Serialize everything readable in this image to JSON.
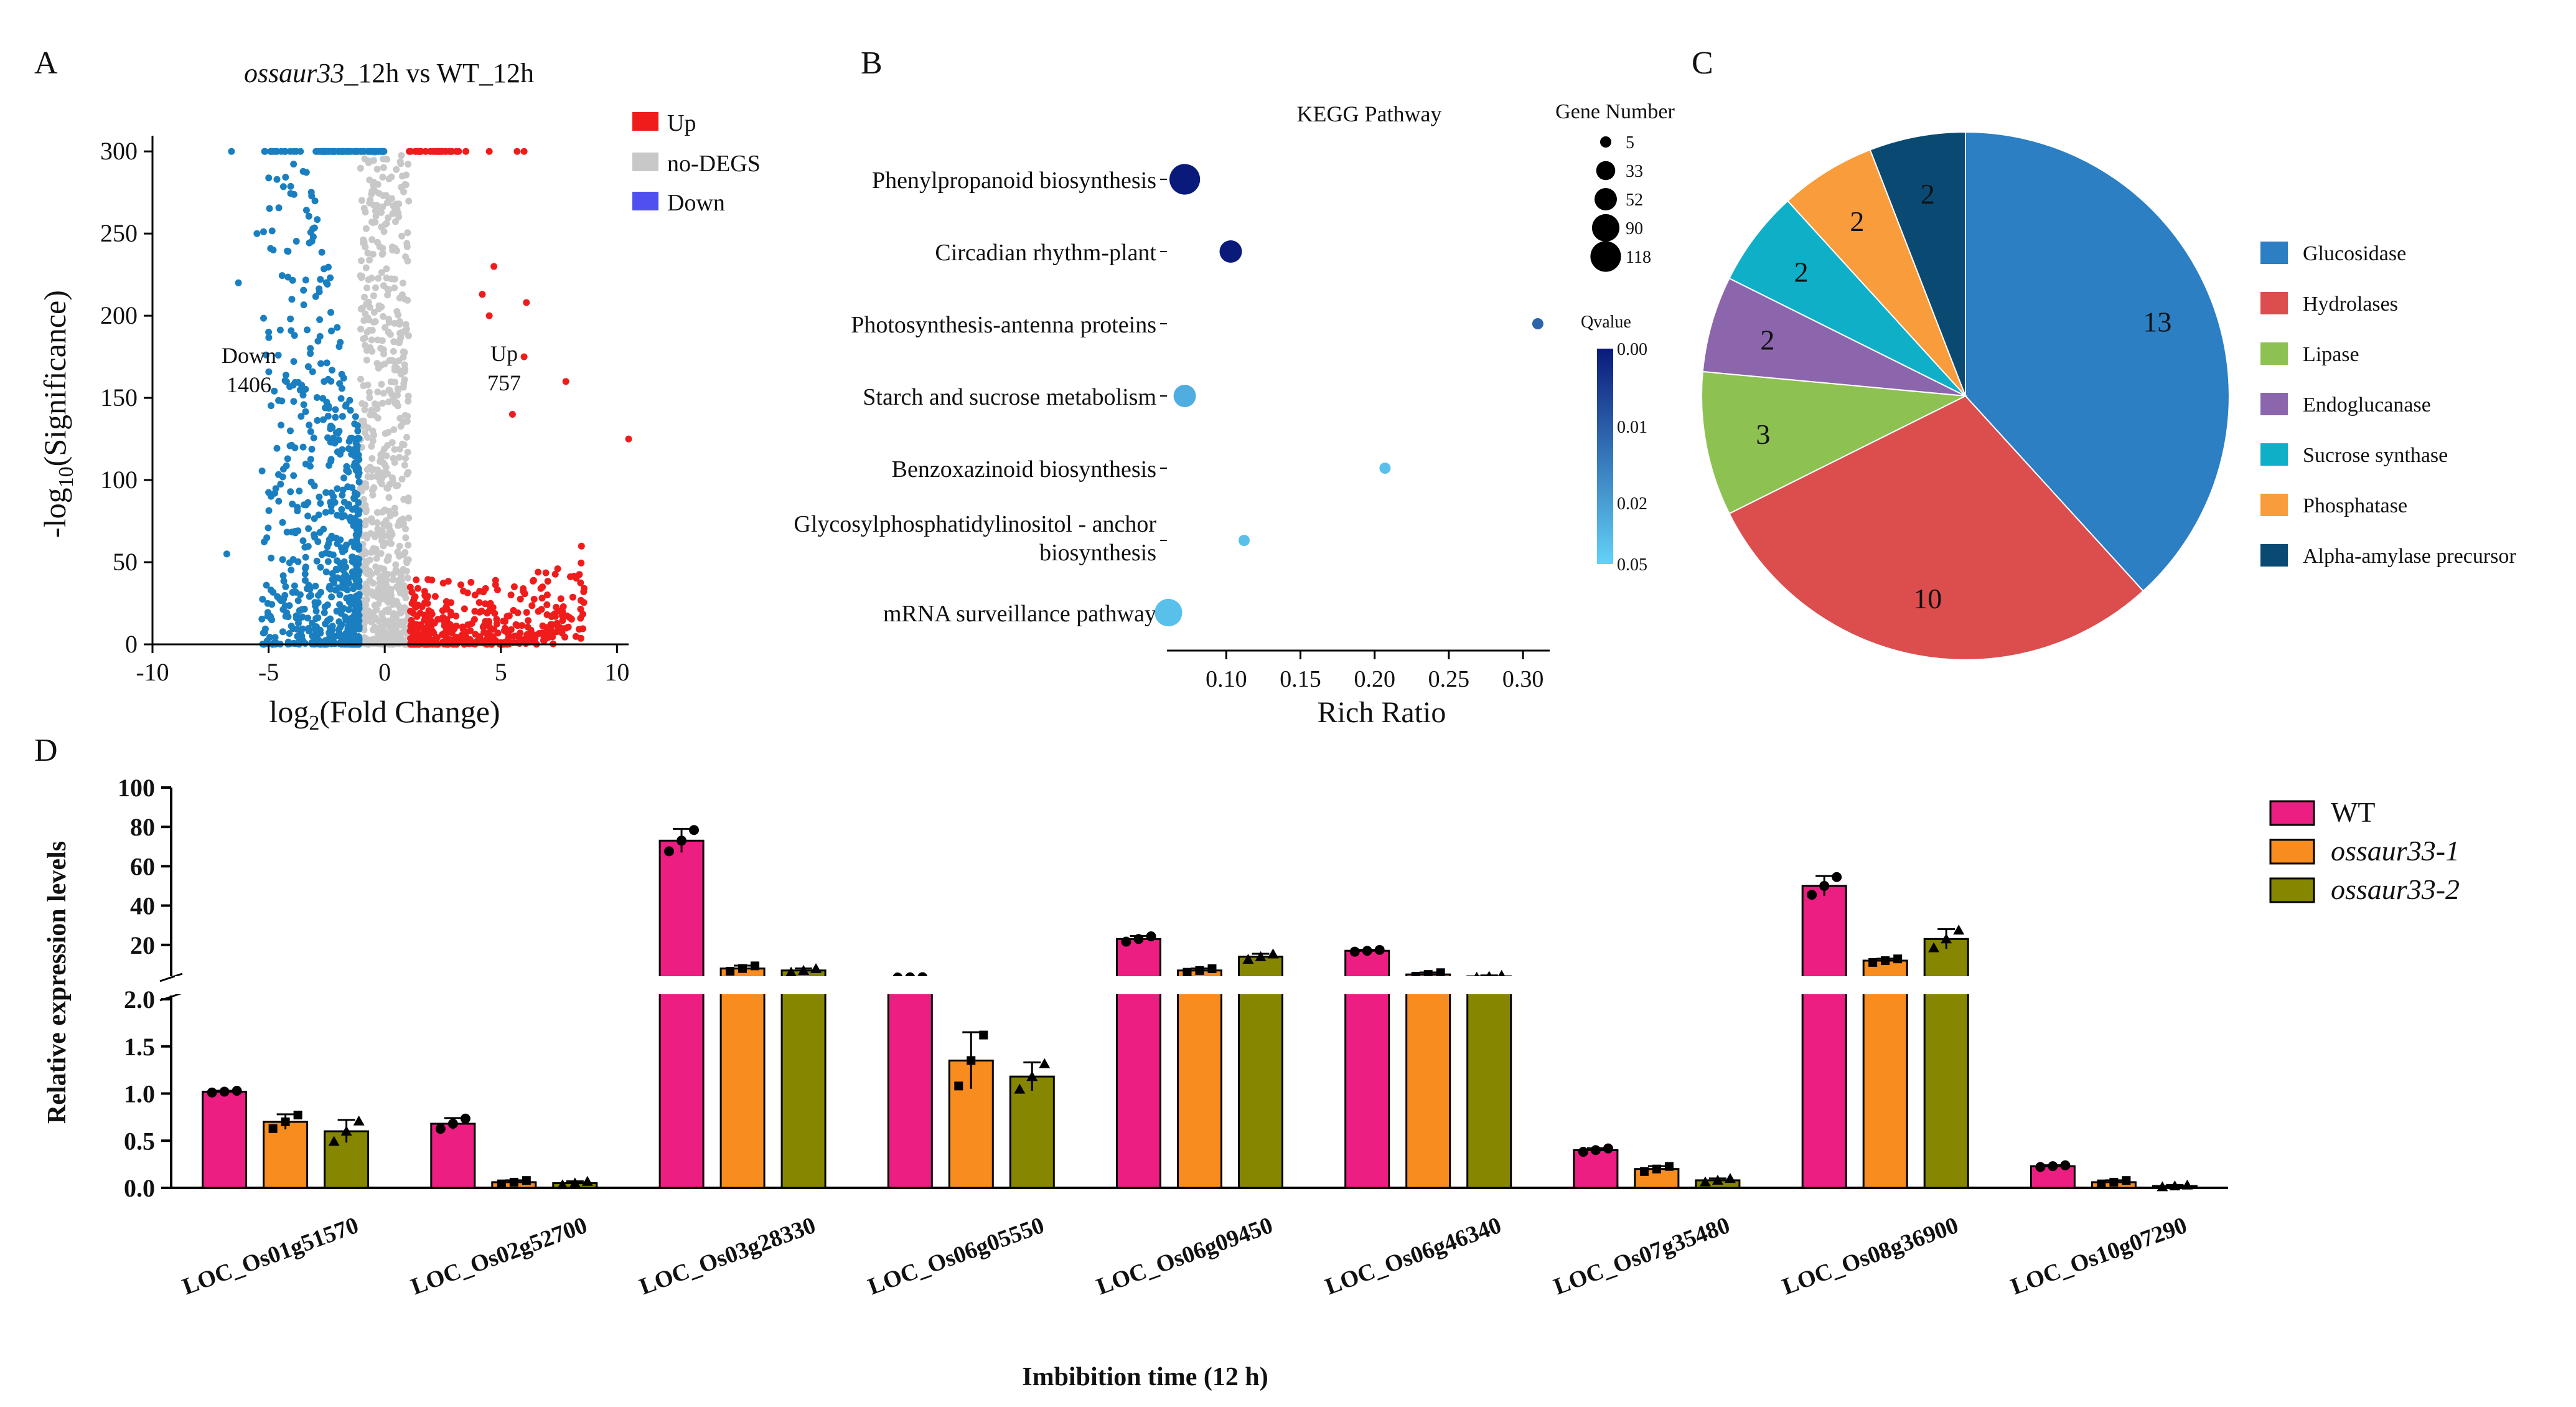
{
  "panels": {
    "A": {
      "letter": "A",
      "title_italic": "ossaur33",
      "title_rest": "_12h vs WT_12h",
      "ylabel_pre": "-log",
      "ylabel_sub": "10",
      "ylabel_post": "(Significance)",
      "xlabel_pre": "log",
      "xlabel_sub": "2",
      "xlabel_post": "(Fold Change)",
      "legend": [
        {
          "label": "Up",
          "color": "#f01c1c"
        },
        {
          "label": "no-DEGS",
          "color": "#c8c8c8"
        },
        {
          "label": "Down",
          "color": "#5050f0"
        }
      ],
      "down_label": "Down",
      "down_count": "1406",
      "up_label": "Up",
      "up_count": "757",
      "colors": {
        "down_points": "#1a7fc0",
        "ns_points": "#c8c8c8",
        "up_points": "#f01c1c"
      }
    },
    "B": {
      "letter": "B",
      "title": "KEGG Pathway",
      "xlabel": "Rich Ratio",
      "size_legend_title": "Gene Number",
      "size_legend": [
        "5",
        "33",
        "52",
        "90",
        "118"
      ],
      "q_legend_title": "Qvalue",
      "q_ticks": [
        "0.00",
        "0.01",
        "0.02",
        "0.05"
      ],
      "gradient": {
        "top": "#0a1a7a",
        "bottom": "#62d2f8"
      }
    },
    "C": {
      "letter": "C"
    },
    "D": {
      "letter": "D",
      "ylabel": "Relative expression levels",
      "xlabel": "Imbibition time (12 h)"
    }
  },
  "chart_data": [
    {
      "panel": "A",
      "type": "scatter",
      "title": "ossaur33_12h vs WT_12h",
      "xlabel": "log2(Fold Change)",
      "ylabel": "-log10(Significance)",
      "xlim": [
        -10,
        10.5
      ],
      "ylim": [
        0,
        305
      ],
      "xticks": [
        "-10",
        "-5",
        "0",
        "5",
        "10"
      ],
      "yticks": [
        "0",
        "50",
        "100",
        "150",
        "200",
        "250",
        "300"
      ],
      "groups": [
        {
          "name": "Up",
          "count": 757
        },
        {
          "name": "no-DEGS"
        },
        {
          "name": "Down",
          "count": 1406
        }
      ],
      "notable_up_points": [
        [
          4.5,
          300
        ],
        [
          5.7,
          300
        ],
        [
          6.0,
          300
        ],
        [
          4.7,
          230
        ],
        [
          4.2,
          213
        ],
        [
          6.1,
          208
        ],
        [
          7.8,
          160
        ],
        [
          10.5,
          125
        ],
        [
          4.5,
          200
        ],
        [
          6.0,
          175
        ],
        [
          5.5,
          140
        ]
      ],
      "notable_down_points": [
        [
          -6.6,
          300
        ],
        [
          -6.3,
          220
        ],
        [
          -6.8,
          55
        ],
        [
          -5.5,
          250
        ],
        [
          -4.8,
          240
        ],
        [
          -4.0,
          210
        ],
        [
          -5.0,
          190
        ]
      ]
    },
    {
      "panel": "B",
      "type": "scatter",
      "title": "KEGG Pathway",
      "xlabel": "Rich Ratio",
      "xlim": [
        0.06,
        0.318
      ],
      "xticks": [
        "0.10",
        "0.15",
        "0.20",
        "0.25",
        "0.30"
      ],
      "categories": [
        "Phenylpropanoid biosynthesis",
        "Circadian rhythm-plant",
        "Photosynthesis-antenna proteins",
        "Starch and sucrose metabolism",
        "Benzoxazinoid biosynthesis",
        "Glycosylphosphatidylinositol - anchor biosynthesis",
        "mRNA surveillance pathway"
      ],
      "label_lines": [
        [
          "Phenylpropanoid biosynthesis"
        ],
        [
          "Circadian rhythm-plant"
        ],
        [
          "Photosynthesis-antenna proteins"
        ],
        [
          "Starch and sucrose metabolism"
        ],
        [
          "Benzoxazinoid biosynthesis"
        ],
        [
          "Glycosylphosphatidylinositol - anchor",
          "biosynthesis"
        ],
        [
          "mRNA surveillance pathway"
        ]
      ],
      "rich_ratio": [
        0.072,
        0.103,
        0.31,
        0.072,
        0.207,
        0.112,
        0.061
      ],
      "gene_number": [
        118,
        52,
        5,
        52,
        5,
        5,
        90
      ],
      "qvalue": [
        0.0,
        0.0,
        0.02,
        0.04,
        0.045,
        0.045,
        0.045
      ]
    },
    {
      "panel": "C",
      "type": "pie",
      "labels": [
        "Glucosidase",
        "Hydrolases",
        "Lipase",
        "Endoglucanase",
        "Sucrose synthase",
        "Phosphatase",
        "Alpha-amylase precursor"
      ],
      "values": [
        13,
        10,
        3,
        2,
        2,
        2,
        2
      ],
      "colors": [
        "#2b7fc2",
        "#dc4e4e",
        "#8dc152",
        "#8c66ad",
        "#0fafc8",
        "#f89c3c",
        "#0a4a72"
      ]
    },
    {
      "panel": "D",
      "type": "bar",
      "ylabel": "Relative expression levels",
      "xlabel": "Imbibition time (12 h)",
      "categories": [
        "LOC_Os01g51570",
        "LOC_Os02g52700",
        "LOC_Os03g28330",
        "LOC_Os06g05550",
        "LOC_Os06g09450",
        "LOC_Os06g46340",
        "LOC_Os07g35480",
        "LOC_Os08g36900",
        "LOC_Os10g07290"
      ],
      "yticks_lower": [
        "0.0",
        "0.5",
        "1.0",
        "1.5",
        "2.0"
      ],
      "yticks_upper": [
        "20",
        "40",
        "60",
        "80",
        "100"
      ],
      "ylim_lower": [
        0,
        2.0
      ],
      "ylim_upper": [
        6,
        100
      ],
      "series": [
        {
          "name": "WT",
          "italic": false,
          "color": "#ec1e82",
          "values": [
            1.02,
            0.68,
            73,
            3.5,
            23,
            17,
            0.4,
            50,
            0.23
          ],
          "errors": [
            0.01,
            0.06,
            6,
            0.1,
            1.5,
            0.5,
            0.02,
            5,
            0.01
          ]
        },
        {
          "name": "ossaur33-1",
          "italic": true,
          "color": "#f98c1e",
          "values": [
            0.7,
            0.06,
            8,
            1.35,
            7,
            5,
            0.2,
            12,
            0.06
          ],
          "errors": [
            0.08,
            0.02,
            1.5,
            0.3,
            1,
            1,
            0.03,
            1,
            0.02
          ]
        },
        {
          "name": "ossaur33-2",
          "italic": true,
          "color": "#868600",
          "values": [
            0.6,
            0.05,
            7,
            1.18,
            14,
            4,
            0.08,
            23,
            0.02
          ],
          "errors": [
            0.12,
            0.02,
            1,
            0.15,
            1.5,
            0.5,
            0.02,
            5,
            0.01
          ]
        }
      ]
    }
  ]
}
